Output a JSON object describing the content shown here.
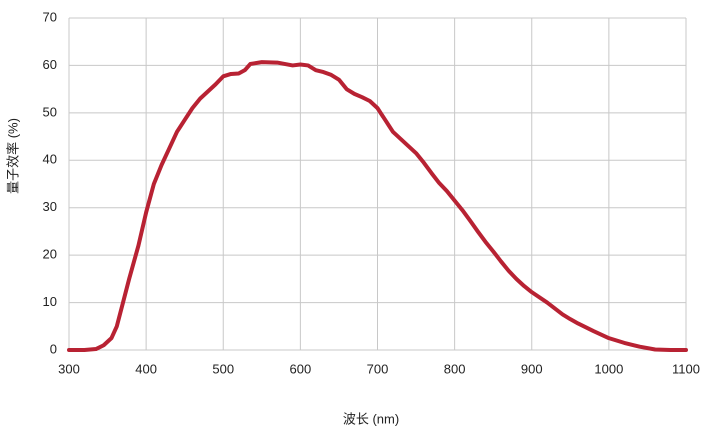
{
  "chart_data": {
    "type": "line",
    "x_label": "波长 (nm)",
    "y_label": "量子效率 (%)",
    "xlim": [
      300,
      1100
    ],
    "xticks": [
      300,
      400,
      500,
      600,
      700,
      800,
      900,
      1000,
      1100
    ],
    "ylim": [
      0,
      70
    ],
    "yticks": [
      0,
      10,
      20,
      30,
      40,
      50,
      60,
      70
    ],
    "grid": true,
    "series": [
      {
        "color": "#b82233",
        "x": [
          300,
          320,
          335,
          345,
          355,
          362,
          370,
          378,
          390,
          400,
          410,
          420,
          430,
          440,
          450,
          460,
          470,
          480,
          490,
          500,
          510,
          520,
          528,
          535,
          550,
          570,
          590,
          600,
          610,
          620,
          630,
          640,
          650,
          660,
          670,
          680,
          690,
          700,
          710,
          720,
          740,
          750,
          760,
          770,
          780,
          790,
          800,
          810,
          820,
          830,
          840,
          850,
          860,
          870,
          880,
          890,
          900,
          920,
          940,
          950,
          960,
          980,
          1000,
          1020,
          1040,
          1060,
          1080,
          1100
        ],
        "values": [
          0,
          0,
          0.2,
          1,
          2.5,
          5,
          10,
          15,
          22,
          29,
          35,
          39,
          42.5,
          46,
          48.5,
          51,
          53,
          54.5,
          56,
          57.7,
          58.2,
          58.3,
          59,
          60.3,
          60.7,
          60.6,
          60,
          60.2,
          60,
          59,
          58.6,
          58,
          57,
          55,
          54,
          53.3,
          52.5,
          51,
          48.5,
          46,
          43,
          41.5,
          39.5,
          37.3,
          35.2,
          33.5,
          31.5,
          29.5,
          27.3,
          25,
          22.8,
          20.8,
          18.7,
          16.7,
          15,
          13.5,
          12.2,
          10,
          7.5,
          6.5,
          5.6,
          4,
          2.5,
          1.5,
          0.7,
          0.1,
          0,
          0
        ]
      }
    ]
  }
}
